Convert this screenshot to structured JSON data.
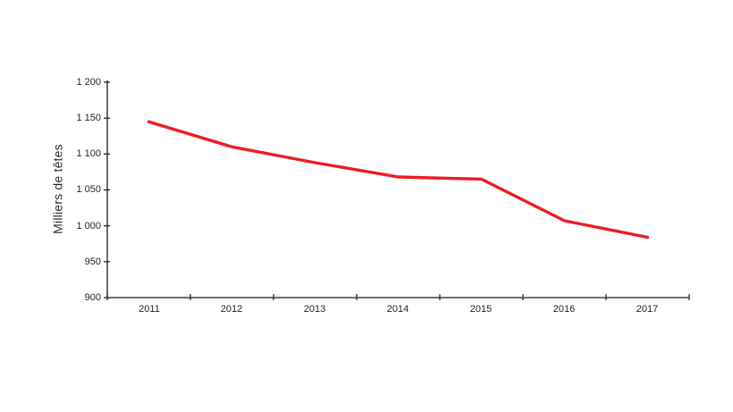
{
  "chart": {
    "background_color": "#ffffff",
    "axis_color": "#1a1a1a",
    "tick_label_color": "#21212b",
    "line_color": "#ed1c24"
  },
  "chart_data": {
    "type": "line",
    "title": "",
    "xlabel": "",
    "ylabel": "Milliers de têtes",
    "categories": [
      "2011",
      "2012",
      "2013",
      "2014",
      "2015",
      "2016",
      "2017"
    ],
    "series": [
      {
        "name": "Milliers de têtes",
        "color": "#ed1c24",
        "values": [
          1145,
          1110,
          1088,
          1068,
          1065,
          1007,
          984
        ]
      }
    ],
    "ylim": [
      900,
      1200
    ],
    "ytick_step": 50,
    "ytick_labels": [
      "1 200",
      "1 150",
      "1 100",
      "1 050",
      "1 000",
      "950",
      "900"
    ],
    "grid": false,
    "legend": "none"
  }
}
